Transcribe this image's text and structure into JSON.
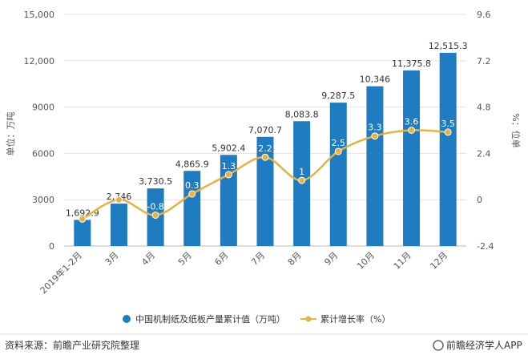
{
  "chart_data": {
    "type": "bar+line",
    "categories": [
      "2019年1-2月",
      "3月",
      "4月",
      "5月",
      "6月",
      "7月",
      "8月",
      "9月",
      "10月",
      "11月",
      "12月"
    ],
    "series": [
      {
        "name": "中国机制纸及纸板产量累计值（万吨）",
        "type": "bar",
        "axis": "left",
        "values": [
          1692.9,
          2746,
          3730.5,
          4865.9,
          5902.4,
          7070.7,
          8083.8,
          9287.5,
          10346,
          11375.8,
          12515.3
        ],
        "labels": [
          "1,692.9",
          "2,746",
          "3,730.5",
          "4,865.9",
          "5,902.4",
          "7,070.7",
          "8,083.8",
          "9,287.5",
          "10,346",
          "11,375.8",
          "12,515.3"
        ],
        "color": "#1f7cc1"
      },
      {
        "name": "累计增长率（%）",
        "type": "line",
        "axis": "right",
        "values": [
          -1.0,
          0.0,
          -0.8,
          0.3,
          1.3,
          2.2,
          1.0,
          2.5,
          3.3,
          3.6,
          3.5
        ],
        "labels": [
          "",
          "",
          "-0.8",
          "0.3",
          "1.3",
          "2.2",
          "1",
          "2.5",
          "3.3",
          "3.6",
          "3.5"
        ],
        "color": "#e8b23c"
      }
    ],
    "left_axis": {
      "label": "单位：万吨",
      "min": 0,
      "max": 15000,
      "ticks": [
        0,
        3000,
        6000,
        9000,
        12000,
        15000
      ],
      "tick_labels": [
        "0",
        "3000",
        "6000",
        "9000",
        "12,000",
        "15,000"
      ]
    },
    "right_axis": {
      "label": "%：位单",
      "min": -2.4,
      "max": 9.6,
      "ticks": [
        -2.4,
        0,
        2.4,
        4.8,
        7.2,
        9.6
      ],
      "tick_labels": [
        "-2.4",
        "0",
        "2.4",
        "4.8",
        "7.2",
        "9.6"
      ]
    },
    "grid": true,
    "legend_position": "bottom"
  },
  "footer": {
    "source": "资料来源：前瞻产业研究院整理",
    "brand": "前瞻经济学人APP"
  }
}
